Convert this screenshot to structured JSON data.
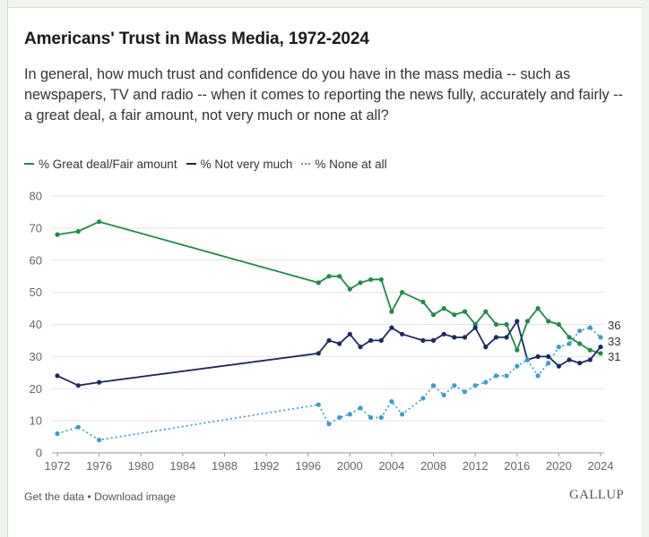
{
  "title": "Americans' Trust in Mass Media, 1972-2024",
  "subtitle": "In general, how much trust and confidence do you have in the mass media -- such as newspapers, TV and radio -- when it comes to reporting the news fully, accurately and fairly -- a great deal, a fair amount, not very much or none at all?",
  "footer": {
    "get_data": "Get the data",
    "separator": " • ",
    "download": "Download image"
  },
  "logo": "GALLUP",
  "colors": {
    "great_fair": "#1e8c45",
    "not_very_much": "#1b2a63",
    "none_at_all": "#3a9dcf",
    "grid": "#e3e3e3",
    "axis_text": "#666666"
  },
  "chart_data": {
    "type": "line",
    "title": "Americans' Trust in Mass Media, 1972-2024",
    "xlabel": "",
    "ylabel": "",
    "xlim": [
      1972,
      2024
    ],
    "ylim": [
      0,
      80
    ],
    "y_ticks": [
      0,
      10,
      20,
      30,
      40,
      50,
      60,
      70,
      80
    ],
    "x_ticks": [
      1972,
      1976,
      1980,
      1984,
      1988,
      1992,
      1996,
      2000,
      2004,
      2008,
      2012,
      2016,
      2020,
      2024
    ],
    "grid": "horizontal",
    "legend_position": "top-left",
    "end_labels": [
      {
        "series": "% None at all",
        "text": "36"
      },
      {
        "series": "% Not very much",
        "text": "33"
      },
      {
        "series": "% Great deal/Fair amount",
        "text": "31"
      }
    ],
    "series": [
      {
        "name": "% Great deal/Fair amount",
        "style": "solid",
        "color": "#1e8c45",
        "points": [
          [
            1972,
            68
          ],
          [
            1974,
            69
          ],
          [
            1976,
            72
          ],
          [
            1997,
            53
          ],
          [
            1998,
            55
          ],
          [
            1999,
            55
          ],
          [
            2000,
            51
          ],
          [
            2001,
            53
          ],
          [
            2002,
            54
          ],
          [
            2003,
            54
          ],
          [
            2004,
            44
          ],
          [
            2005,
            50
          ],
          [
            2007,
            47
          ],
          [
            2008,
            43
          ],
          [
            2009,
            45
          ],
          [
            2010,
            43
          ],
          [
            2011,
            44
          ],
          [
            2012,
            40
          ],
          [
            2013,
            44
          ],
          [
            2014,
            40
          ],
          [
            2015,
            40
          ],
          [
            2016,
            32
          ],
          [
            2017,
            41
          ],
          [
            2018,
            45
          ],
          [
            2019,
            41
          ],
          [
            2020,
            40
          ],
          [
            2021,
            36
          ],
          [
            2022,
            34
          ],
          [
            2023,
            32
          ],
          [
            2024,
            31
          ]
        ]
      },
      {
        "name": "% Not very much",
        "style": "solid",
        "color": "#1b2a63",
        "points": [
          [
            1972,
            24
          ],
          [
            1974,
            21
          ],
          [
            1976,
            22
          ],
          [
            1997,
            31
          ],
          [
            1998,
            35
          ],
          [
            1999,
            34
          ],
          [
            2000,
            37
          ],
          [
            2001,
            33
          ],
          [
            2002,
            35
          ],
          [
            2003,
            35
          ],
          [
            2004,
            39
          ],
          [
            2005,
            37
          ],
          [
            2007,
            35
          ],
          [
            2008,
            35
          ],
          [
            2009,
            37
          ],
          [
            2010,
            36
          ],
          [
            2011,
            36
          ],
          [
            2012,
            39
          ],
          [
            2013,
            33
          ],
          [
            2014,
            36
          ],
          [
            2015,
            36
          ],
          [
            2016,
            41
          ],
          [
            2017,
            29
          ],
          [
            2018,
            30
          ],
          [
            2019,
            30
          ],
          [
            2020,
            27
          ],
          [
            2021,
            29
          ],
          [
            2022,
            28
          ],
          [
            2023,
            29
          ],
          [
            2024,
            33
          ]
        ]
      },
      {
        "name": "% None at all",
        "style": "dotted",
        "color": "#3a9dcf",
        "points": [
          [
            1972,
            6
          ],
          [
            1974,
            8
          ],
          [
            1976,
            4
          ],
          [
            1997,
            15
          ],
          [
            1998,
            9
          ],
          [
            1999,
            11
          ],
          [
            2000,
            12
          ],
          [
            2001,
            14
          ],
          [
            2002,
            11
          ],
          [
            2003,
            11
          ],
          [
            2004,
            16
          ],
          [
            2005,
            12
          ],
          [
            2007,
            17
          ],
          [
            2008,
            21
          ],
          [
            2009,
            18
          ],
          [
            2010,
            21
          ],
          [
            2011,
            19
          ],
          [
            2012,
            21
          ],
          [
            2013,
            22
          ],
          [
            2014,
            24
          ],
          [
            2015,
            24
          ],
          [
            2016,
            27
          ],
          [
            2017,
            29
          ],
          [
            2018,
            24
          ],
          [
            2019,
            28
          ],
          [
            2020,
            33
          ],
          [
            2021,
            34
          ],
          [
            2022,
            38
          ],
          [
            2023,
            39
          ],
          [
            2024,
            36
          ]
        ]
      }
    ]
  }
}
